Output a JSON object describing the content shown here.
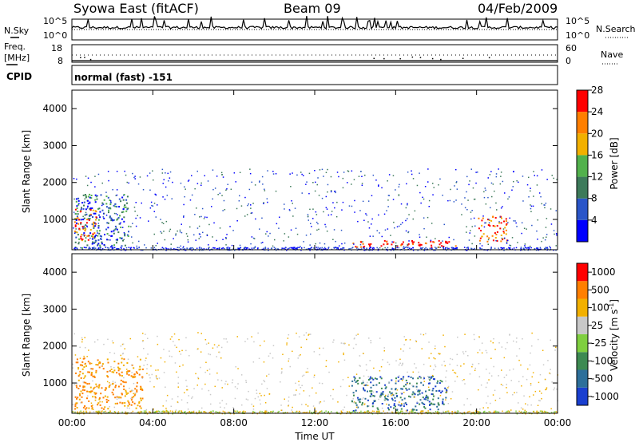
{
  "header": {
    "station": "Syowa East (fitACF)",
    "beam": "Beam 09",
    "date": "04/Feb/2009"
  },
  "noise_panel": {
    "left_label": "N.Sky",
    "right_label": "N.Search",
    "ticks_left": [
      "10^5",
      "10^0"
    ],
    "ticks_right": [
      "10^5",
      "10^0"
    ]
  },
  "freq_panel": {
    "left_label_1": "Freq.",
    "left_label_2": "[MHz]",
    "right_label": "Nave",
    "ticks_left": [
      "18",
      "8"
    ],
    "ticks_right": [
      "60",
      "0"
    ]
  },
  "cpid": {
    "label": "CPID",
    "value": "normal (fast) -151"
  },
  "x_axis": {
    "label": "Time UT",
    "ticks": [
      "00:00",
      "04:00",
      "08:00",
      "12:00",
      "16:00",
      "20:00",
      "00:00"
    ]
  },
  "chart_data": [
    {
      "type": "heatmap",
      "title": "",
      "xlabel": "Time UT",
      "ylabel": "Slant Range [km]",
      "xlim": [
        0,
        24
      ],
      "ylim": [
        180,
        4500
      ],
      "y_ticks": [
        "1000",
        "2000",
        "3000",
        "4000"
      ],
      "colorbar": {
        "label": "Power [dB]",
        "ticks": [
          "4",
          "8",
          "12",
          "16",
          "20",
          "24",
          "28"
        ],
        "colors": [
          "#0000ff",
          "#2a55c8",
          "#3d7a5a",
          "#52b14c",
          "#f2b000",
          "#ff7f00",
          "#ff0000"
        ]
      },
      "regions": [
        {
          "t0": 0.1,
          "t1": 2.8,
          "r0": 200,
          "r1": 1700,
          "level": "low-mid"
        },
        {
          "t0": 0.1,
          "t1": 1.2,
          "r0": 450,
          "r1": 1300,
          "level": "high"
        },
        {
          "t0": 13.8,
          "t1": 19.0,
          "r0": 250,
          "r1": 450,
          "level": "max"
        },
        {
          "t0": 20.0,
          "t1": 21.5,
          "r0": 400,
          "r1": 1100,
          "level": "high"
        }
      ]
    },
    {
      "type": "heatmap",
      "title": "",
      "xlabel": "Time UT",
      "ylabel": "Slant Range [km]",
      "xlim": [
        0,
        24
      ],
      "ylim": [
        180,
        4500
      ],
      "y_ticks": [
        "1000",
        "2000",
        "3000",
        "4000"
      ],
      "colorbar": {
        "label": "Velocity [m s",
        "label_sup": "-1",
        "label_end": "]",
        "ticks": [
          "1000",
          "500",
          "100",
          "25",
          "-25",
          "-100",
          "-500",
          "-1000"
        ],
        "colors": [
          "#1a3fd0",
          "#2d6f9a",
          "#3d8a52",
          "#7fcf3f",
          "#c8c8c8",
          "#f2b000",
          "#ff7f00",
          "#ff0000"
        ]
      },
      "regions": [
        {
          "t0": 0.1,
          "t1": 3.5,
          "r0": 300,
          "r1": 1700,
          "level": "negative"
        },
        {
          "t0": 13.8,
          "t1": 18.5,
          "r0": 250,
          "r1": 1200,
          "level": "positive"
        }
      ]
    }
  ],
  "colors": {
    "frame": "#000000",
    "scatter_gray": "#c8c8c8"
  }
}
